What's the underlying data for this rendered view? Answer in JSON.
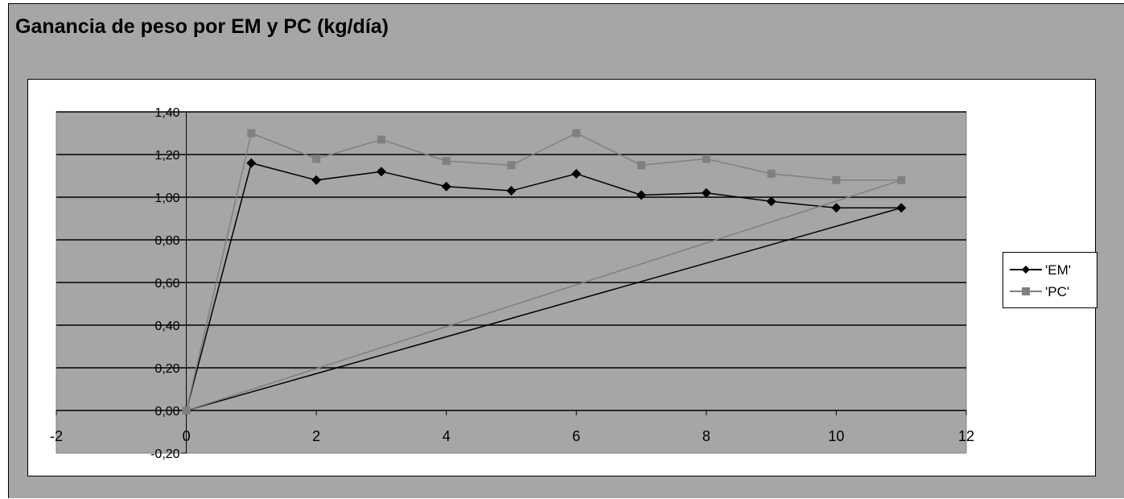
{
  "chart_data": {
    "type": "scatter",
    "title": "Ganancia de peso por EM y PC (kg/día)",
    "xlabel": "",
    "ylabel": "",
    "xlim": [
      -2,
      12
    ],
    "ylim": [
      -0.2,
      1.4
    ],
    "x_ticks": [
      "-2",
      "0",
      "2",
      "4",
      "6",
      "8",
      "10",
      "12"
    ],
    "y_ticks": [
      "-0,20",
      "0,00",
      "0,20",
      "0,40",
      "0,60",
      "0,80",
      "1,00",
      "1,20",
      "1,40"
    ],
    "grid": "horizontal",
    "legend_position": "right",
    "series": [
      {
        "name": "'EM'",
        "color": "#000000",
        "marker": "diamond",
        "x": [
          0,
          1,
          2,
          3,
          4,
          5,
          6,
          7,
          8,
          9,
          10,
          11,
          0
        ],
        "y": [
          0.0,
          1.16,
          1.08,
          1.12,
          1.05,
          1.03,
          1.11,
          1.01,
          1.02,
          0.98,
          0.95,
          0.95,
          0.0
        ]
      },
      {
        "name": "'PC'",
        "color": "#808080",
        "marker": "square",
        "x": [
          0,
          1,
          2,
          3,
          4,
          5,
          6,
          7,
          8,
          9,
          10,
          11,
          0
        ],
        "y": [
          0.0,
          1.3,
          1.18,
          1.27,
          1.17,
          1.15,
          1.3,
          1.15,
          1.18,
          1.11,
          1.08,
          1.08,
          0.0
        ]
      }
    ]
  }
}
